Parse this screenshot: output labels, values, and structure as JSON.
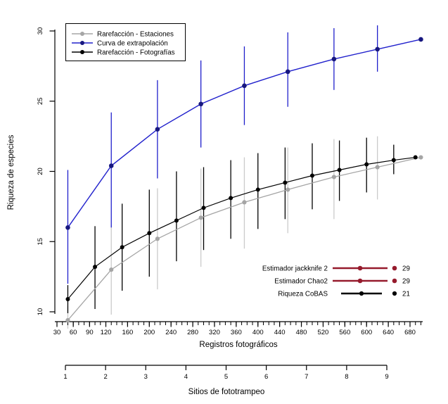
{
  "colors": {
    "background": "#FFFFFF",
    "axis": "#000000",
    "gray": "#A5A5A5",
    "gray_bar": "#CBCBCB",
    "blue_line": "#2020CC",
    "blue_dot": "#17177F",
    "black": "#000000",
    "estimator_red": "#961B2D"
  },
  "legend": {
    "items": [
      {
        "label": "Rarefacción - Estaciones",
        "key": "gray"
      },
      {
        "label": "Curva de extrapolación",
        "key": "blue"
      },
      {
        "label": "Rarefacción - Fotografías",
        "key": "black"
      }
    ]
  },
  "estimators": {
    "rows": [
      {
        "label": "Estimador jackknife 2",
        "value": "29"
      },
      {
        "label": "Estimador Chao2",
        "value": "29"
      },
      {
        "label": "Riqueza CoBAS",
        "value": "21"
      }
    ]
  },
  "chart_data": {
    "type": "line",
    "title": "",
    "xlabel": "Registros fotográficos",
    "ylabel": "Riqueza de especies",
    "x2label": "Sitios de fototrampeo",
    "xlim": [
      30,
      700
    ],
    "ylim": [
      10,
      30
    ],
    "grid": false,
    "legend_position": "top-left",
    "x_axis_tick_labels": [
      30,
      60,
      90,
      120,
      160,
      200,
      240,
      280,
      320,
      360,
      400,
      440,
      480,
      520,
      560,
      600,
      640,
      680
    ],
    "x_axis_minor_tick_step": 10,
    "y_axis_ticks": [
      10,
      15,
      20,
      25,
      30
    ],
    "site_axis_ticks": [
      1,
      2,
      3,
      4,
      5,
      6,
      7,
      8,
      9
    ],
    "series": [
      {
        "name": "Rarefacción - Estaciones",
        "color_key": "gray",
        "x": [
          50,
          130,
          215,
          295,
          375,
          455,
          540,
          620,
          700
        ],
        "y": [
          9.4,
          13.0,
          15.2,
          16.7,
          17.8,
          18.7,
          19.6,
          20.3,
          21.0
        ],
        "ci_lower": [
          8.8,
          9.8,
          11.6,
          13.2,
          14.5,
          15.6,
          16.6,
          18.0,
          null
        ],
        "ci_upper": [
          10.4,
          16.2,
          18.8,
          20.2,
          21.0,
          21.7,
          22.3,
          22.5,
          null
        ]
      },
      {
        "name": "Curva de extrapolación",
        "color_key": "blue",
        "x": [
          50,
          130,
          215,
          295,
          375,
          455,
          540,
          620,
          700
        ],
        "y": [
          16.0,
          20.4,
          23.0,
          24.8,
          26.1,
          27.1,
          28.0,
          28.7,
          29.4
        ],
        "ci_lower": [
          12.0,
          16.0,
          19.5,
          21.7,
          23.3,
          24.6,
          25.8,
          27.1,
          null
        ],
        "ci_upper": [
          20.1,
          24.2,
          26.5,
          27.9,
          28.9,
          29.9,
          30.2,
          30.4,
          null
        ]
      },
      {
        "name": "Rarefacción - Fotografías",
        "color_key": "black",
        "x": [
          50,
          100,
          150,
          200,
          250,
          300,
          350,
          400,
          450,
          500,
          550,
          600,
          650,
          690
        ],
        "y": [
          10.9,
          13.2,
          14.6,
          15.6,
          16.5,
          17.4,
          18.1,
          18.7,
          19.2,
          19.7,
          20.1,
          20.5,
          20.8,
          21.0
        ],
        "ci_lower": [
          9.9,
          10.2,
          11.5,
          12.5,
          13.6,
          14.4,
          15.2,
          15.9,
          16.6,
          17.3,
          17.9,
          18.5,
          19.8,
          null
        ],
        "ci_upper": [
          11.9,
          16.1,
          17.7,
          18.7,
          20.0,
          20.3,
          20.8,
          21.3,
          21.7,
          22.0,
          22.2,
          22.4,
          21.9,
          null
        ]
      }
    ],
    "annotations": [
      {
        "label": "Estimador jackknife 2",
        "value": 29
      },
      {
        "label": "Estimador Chao2",
        "value": 29
      },
      {
        "label": "Riqueza CoBAS",
        "value": 21
      }
    ]
  }
}
